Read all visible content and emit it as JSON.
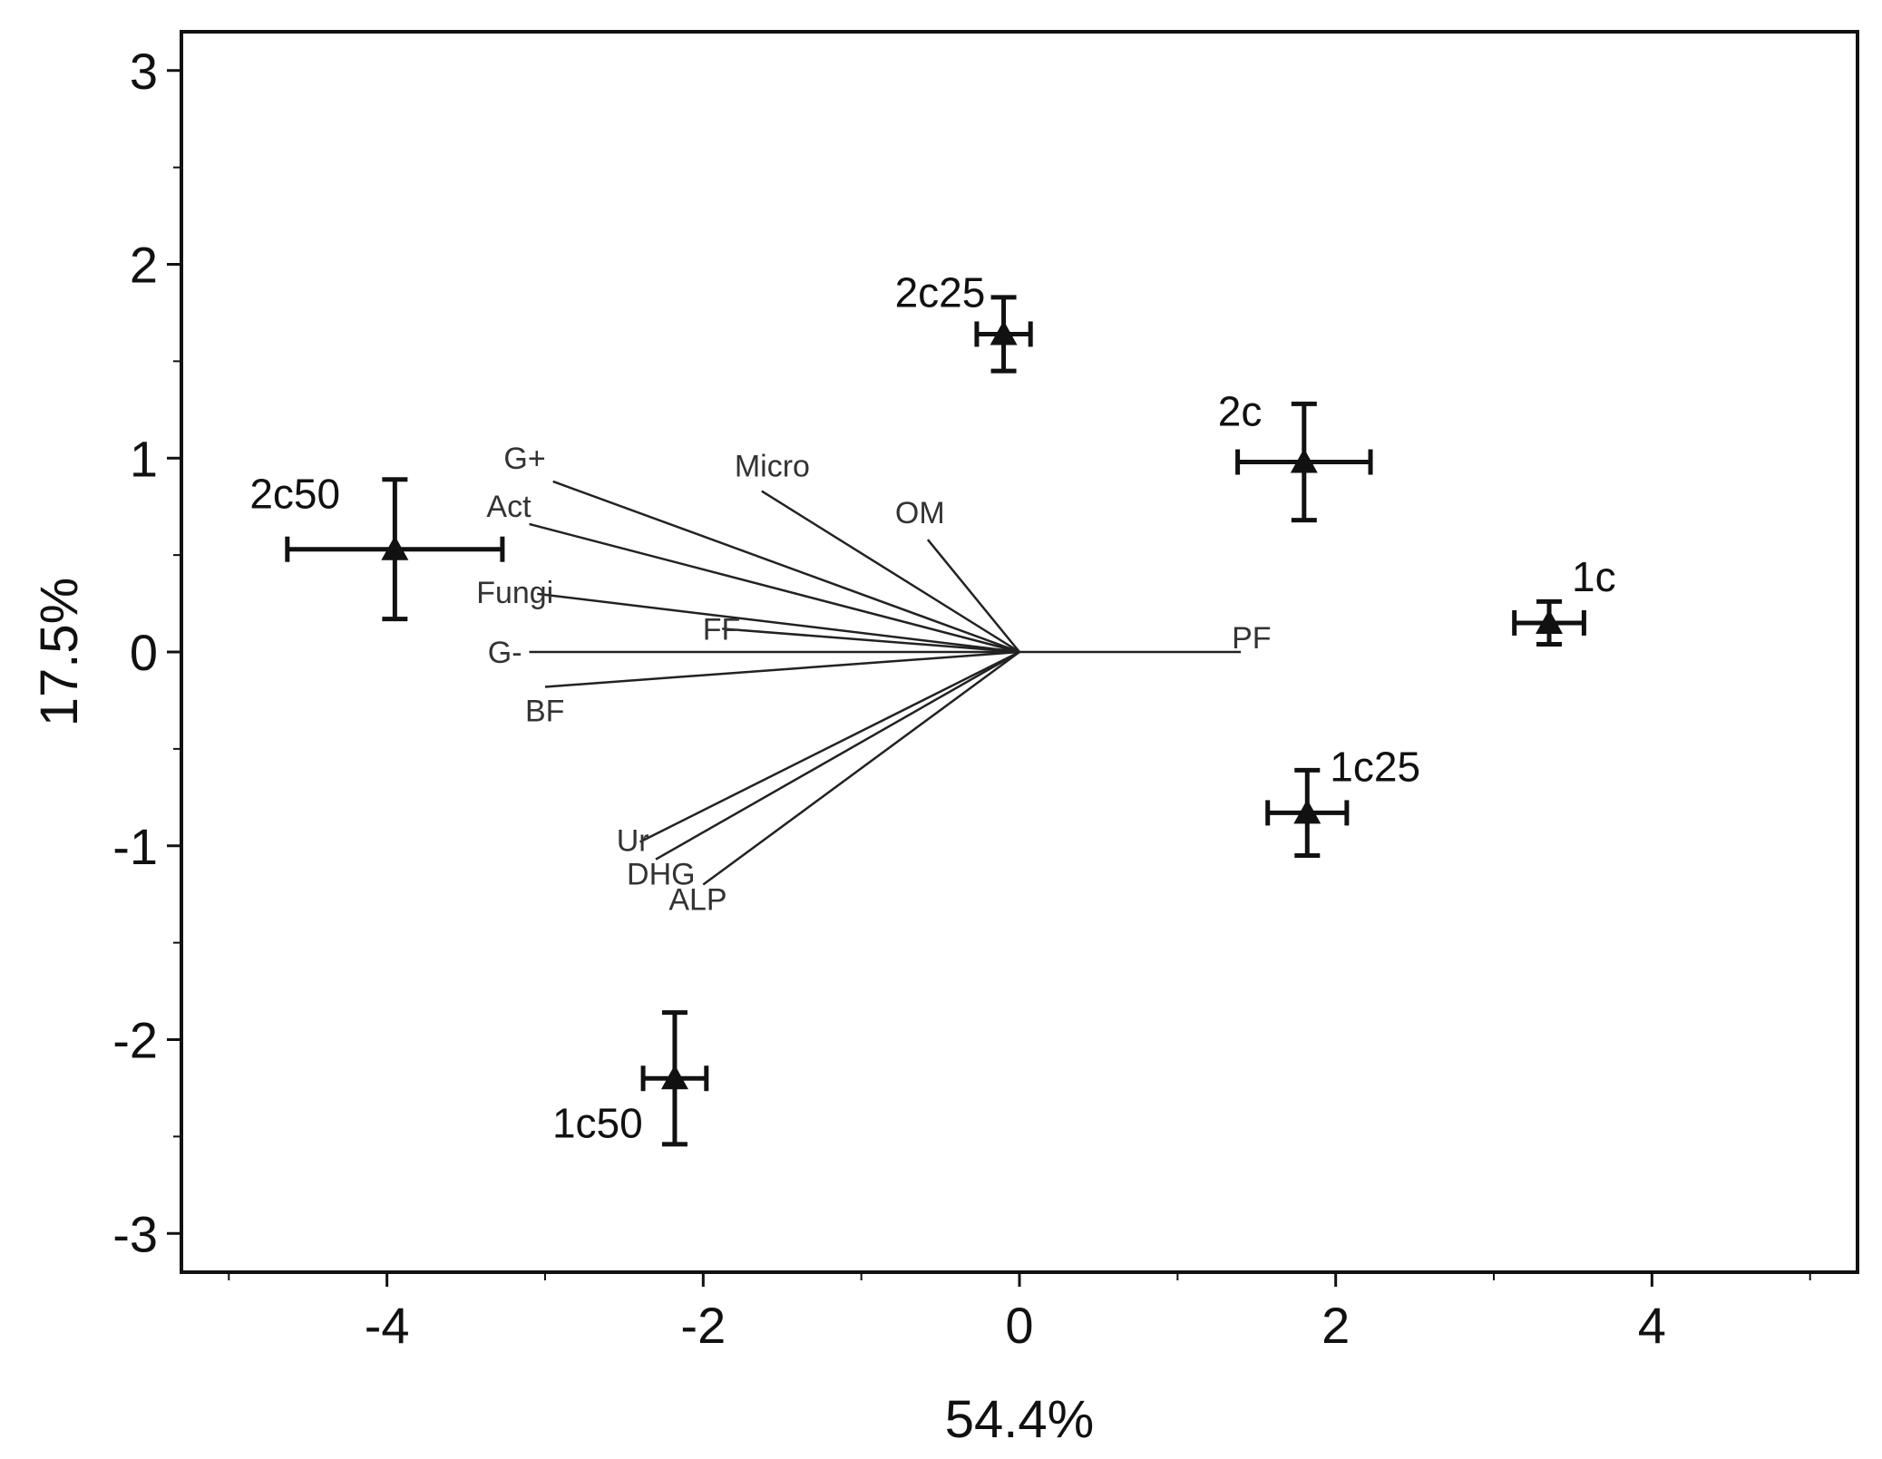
{
  "chart_data": {
    "type": "scatter",
    "xlabel": "54.4%",
    "ylabel": "17.5%",
    "xlim": [
      -5.3,
      5.3
    ],
    "ylim": [
      -3.2,
      3.2
    ],
    "xticks": [
      -4,
      -2,
      0,
      2,
      4
    ],
    "xtick_labels": [
      "-4",
      "-2",
      "0",
      "2",
      "4"
    ],
    "yticks": [
      -3,
      -2,
      -1,
      0,
      1,
      2,
      3
    ],
    "ytick_labels": [
      "-3",
      "-2",
      "-1",
      "0",
      "1",
      "2",
      "3"
    ],
    "minor_xticks": [
      -5,
      -3,
      -1,
      1,
      3,
      5
    ],
    "minor_yticks": [
      -2.5,
      -1.5,
      -0.5,
      0.5,
      1.5,
      2.5
    ],
    "grid": false,
    "samples": [
      {
        "label": "2c25",
        "x": -0.1,
        "y": 1.64,
        "xerr": 0.17,
        "yerr": 0.19
      },
      {
        "label": "2c",
        "x": 1.8,
        "y": 0.98,
        "xerr": 0.42,
        "yerr": 0.3
      },
      {
        "label": "2c50",
        "x": -3.95,
        "y": 0.53,
        "xerr": 0.68,
        "yerr": 0.36
      },
      {
        "label": "1c",
        "x": 3.35,
        "y": 0.15,
        "xerr": 0.22,
        "yerr": 0.11
      },
      {
        "label": "1c25",
        "x": 1.82,
        "y": -0.83,
        "xerr": 0.25,
        "yerr": 0.22
      },
      {
        "label": "1c50",
        "x": -2.18,
        "y": -2.2,
        "xerr": 0.2,
        "yerr": 0.34
      }
    ],
    "vectors": [
      {
        "label": "G+",
        "x": -2.95,
        "y": 0.88
      },
      {
        "label": "Micro",
        "x": -1.63,
        "y": 0.83
      },
      {
        "label": "OM",
        "x": -0.58,
        "y": 0.58
      },
      {
        "label": "Act",
        "x": -3.1,
        "y": 0.66
      },
      {
        "label": "Fungi",
        "x": -3.05,
        "y": 0.3
      },
      {
        "label": "FF",
        "x": -1.88,
        "y": 0.12
      },
      {
        "label": "G-",
        "x": -3.1,
        "y": 0.0
      },
      {
        "label": "BF",
        "x": -3.0,
        "y": -0.18
      },
      {
        "label": "PF",
        "x": 1.4,
        "y": 0.0
      },
      {
        "label": "Ur",
        "x": -2.4,
        "y": -0.98
      },
      {
        "label": "DHG",
        "x": -2.3,
        "y": -1.07
      },
      {
        "label": "ALP",
        "x": -2.0,
        "y": -1.2
      }
    ]
  }
}
